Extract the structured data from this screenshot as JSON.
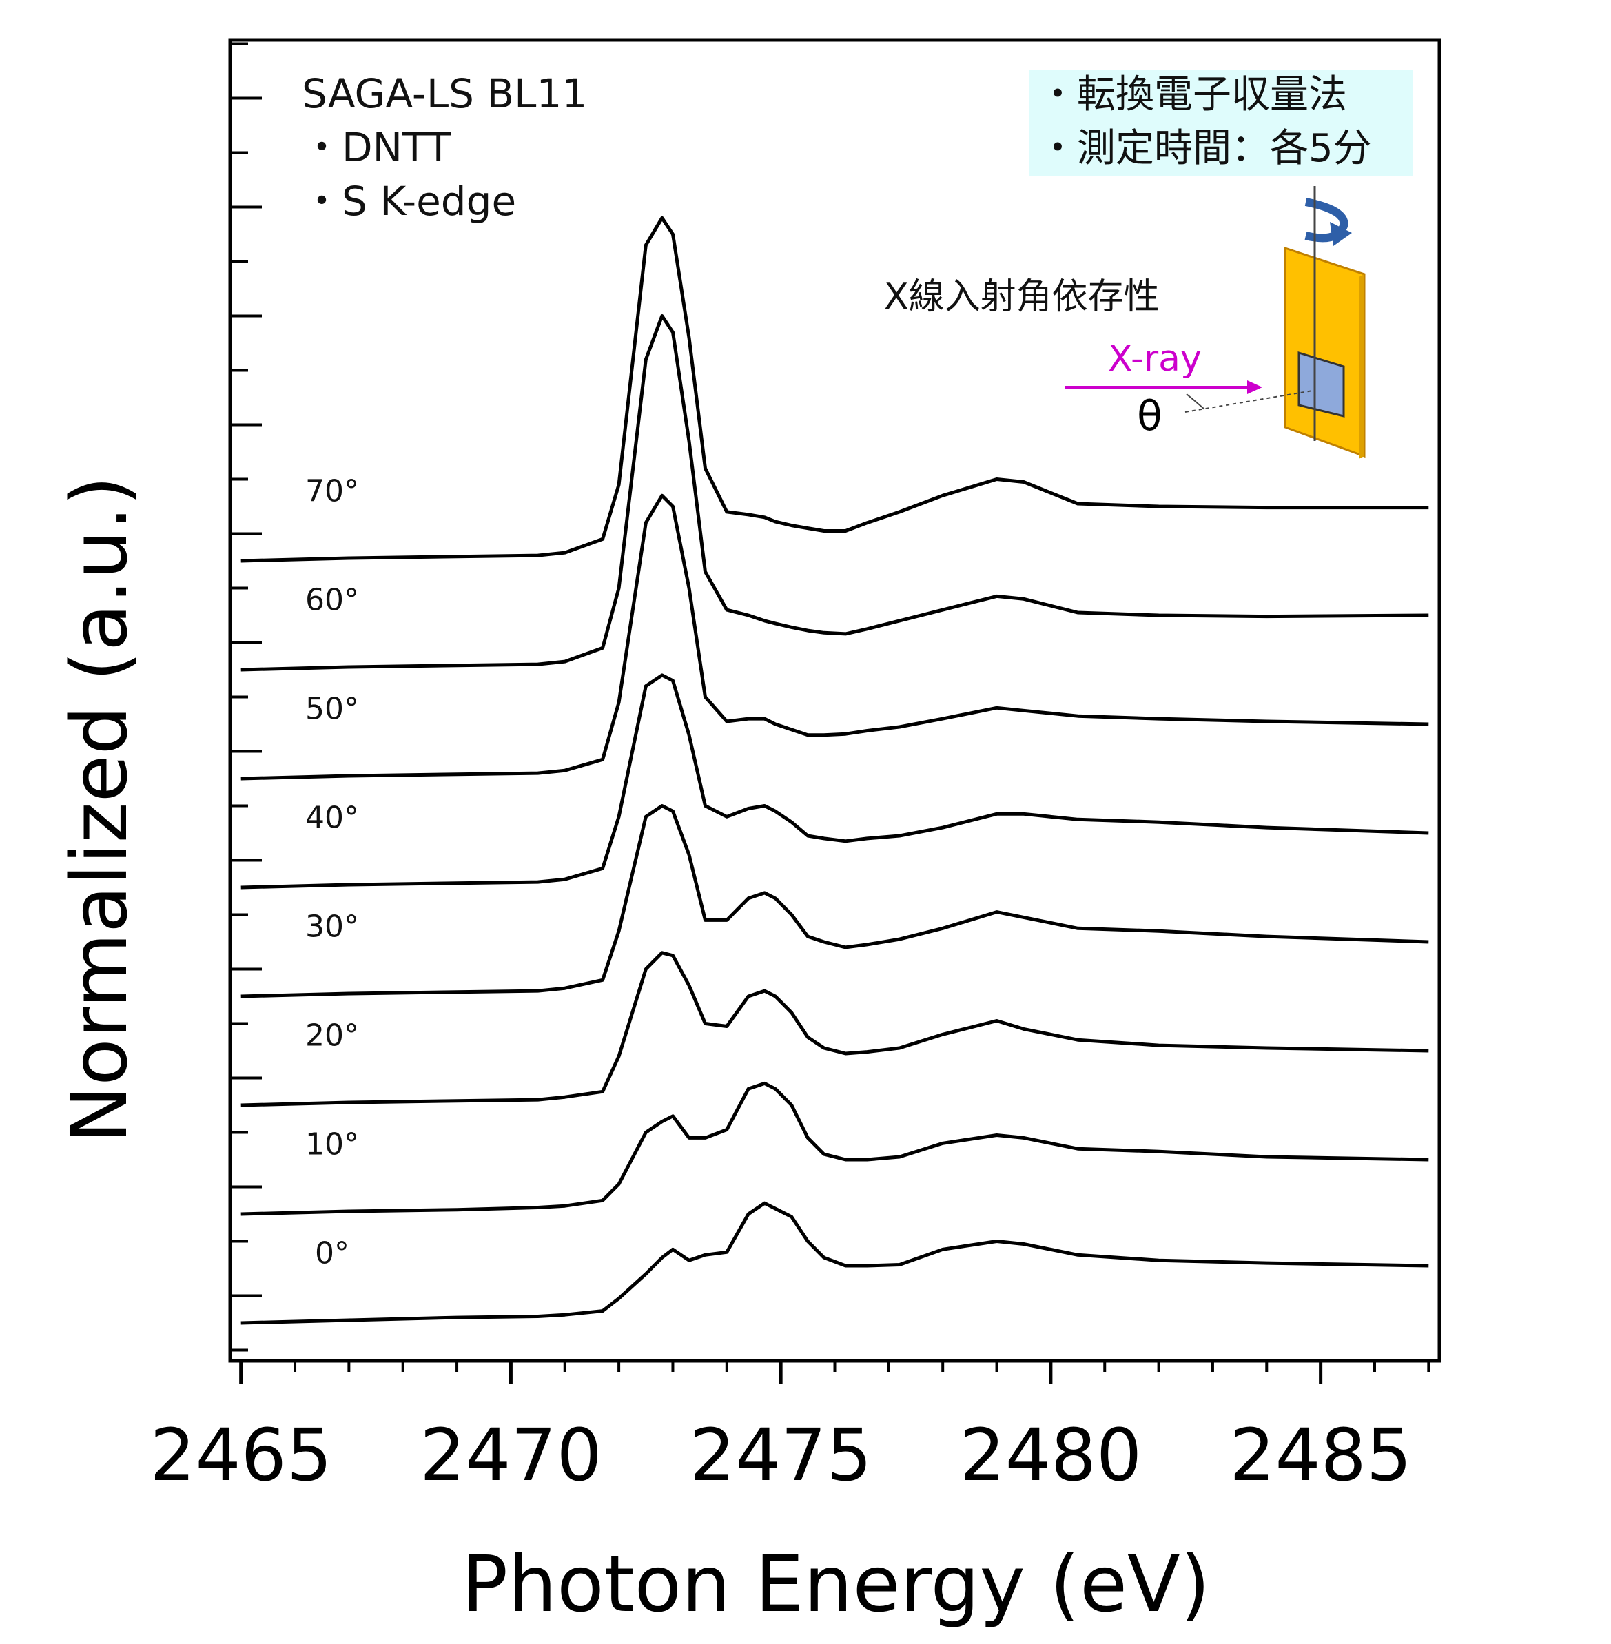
{
  "chart_data": {
    "type": "line",
    "title": "",
    "xlabel": "Photon Energy (eV)",
    "ylabel": "Normalized (a.u.)",
    "xlim": [
      2464.8,
      2487.2
    ],
    "xticks": [
      2465,
      2470,
      2475,
      2480,
      2485
    ],
    "ylim": [
      -0.6,
      24
    ],
    "y_axis_tick_labels": "none",
    "grid": false,
    "legend": "none",
    "offset_between_spectra": 2.0,
    "annotations": {
      "beamline": "SAGA-LS BL11",
      "sample": "・DNTT",
      "edge": "・S K-edge",
      "method": "・転換電子収量法",
      "time": "・測定時間：各5分",
      "dependence": "X線入射角依存性",
      "xray": "X-ray",
      "theta": "θ"
    },
    "colors": {
      "line": "#000000",
      "box_bg": "#DFFCFC",
      "substrate": "#FFC000",
      "sample": "#8EA9DB",
      "rotation_arrow": "#2E5FA8",
      "xray": "#CC00CC"
    },
    "series": [
      {
        "name": "0°",
        "offset": 0,
        "x": [
          2465.0,
          2467.0,
          2469.0,
          2470.5,
          2471.0,
          2471.7,
          2472.0,
          2472.5,
          2472.8,
          2473.0,
          2473.3,
          2473.6,
          2474.0,
          2474.4,
          2474.7,
          2474.9,
          2475.2,
          2475.5,
          2475.8,
          2476.2,
          2476.6,
          2477.2,
          2478.0,
          2479.0,
          2479.5,
          2480.5,
          2482.0,
          2484.0,
          2487.0
        ],
        "y": [
          0.0,
          0.05,
          0.1,
          0.12,
          0.15,
          0.22,
          0.45,
          0.9,
          1.2,
          1.35,
          1.15,
          1.25,
          1.3,
          2.0,
          2.2,
          2.1,
          1.95,
          1.5,
          1.2,
          1.05,
          1.05,
          1.07,
          1.35,
          1.5,
          1.45,
          1.25,
          1.15,
          1.1,
          1.05
        ]
      },
      {
        "name": "10°",
        "offset": 2,
        "x": [
          2465.0,
          2467.0,
          2469.0,
          2470.5,
          2471.0,
          2471.7,
          2472.0,
          2472.5,
          2472.8,
          2473.0,
          2473.3,
          2473.6,
          2474.0,
          2474.4,
          2474.7,
          2474.9,
          2475.2,
          2475.5,
          2475.8,
          2476.2,
          2476.6,
          2477.2,
          2478.0,
          2479.0,
          2479.5,
          2480.5,
          2482.0,
          2484.0,
          2487.0
        ],
        "y": [
          0.0,
          0.05,
          0.08,
          0.12,
          0.15,
          0.25,
          0.55,
          1.5,
          1.7,
          1.8,
          1.4,
          1.4,
          1.55,
          2.3,
          2.4,
          2.3,
          2.0,
          1.4,
          1.1,
          1.0,
          1.0,
          1.05,
          1.3,
          1.45,
          1.4,
          1.2,
          1.15,
          1.05,
          1.0
        ]
      },
      {
        "name": "20°",
        "offset": 4,
        "x": [
          2465.0,
          2467.0,
          2469.0,
          2470.5,
          2471.0,
          2471.7,
          2472.0,
          2472.5,
          2472.8,
          2473.0,
          2473.3,
          2473.6,
          2474.0,
          2474.4,
          2474.7,
          2474.9,
          2475.2,
          2475.5,
          2475.8,
          2476.2,
          2476.6,
          2477.2,
          2478.0,
          2479.0,
          2479.5,
          2480.5,
          2482.0,
          2484.0,
          2487.0
        ],
        "y": [
          0.0,
          0.05,
          0.08,
          0.1,
          0.15,
          0.25,
          0.9,
          2.5,
          2.8,
          2.75,
          2.2,
          1.5,
          1.45,
          2.0,
          2.1,
          2.0,
          1.7,
          1.25,
          1.05,
          0.95,
          0.98,
          1.05,
          1.3,
          1.55,
          1.4,
          1.2,
          1.1,
          1.05,
          1.0
        ]
      },
      {
        "name": "30°",
        "offset": 6,
        "x": [
          2465.0,
          2467.0,
          2469.0,
          2470.5,
          2471.0,
          2471.7,
          2472.0,
          2472.5,
          2472.8,
          2473.0,
          2473.3,
          2473.6,
          2474.0,
          2474.4,
          2474.7,
          2474.9,
          2475.2,
          2475.5,
          2475.8,
          2476.2,
          2476.6,
          2477.2,
          2478.0,
          2479.0,
          2479.5,
          2480.5,
          2482.0,
          2484.0,
          2487.0
        ],
        "y": [
          0.0,
          0.05,
          0.08,
          0.1,
          0.15,
          0.3,
          1.2,
          3.3,
          3.5,
          3.4,
          2.6,
          1.4,
          1.4,
          1.8,
          1.9,
          1.8,
          1.5,
          1.1,
          1.0,
          0.9,
          0.95,
          1.05,
          1.25,
          1.55,
          1.45,
          1.25,
          1.2,
          1.1,
          1.0
        ]
      },
      {
        "name": "40°",
        "offset": 8,
        "x": [
          2465.0,
          2467.0,
          2469.0,
          2470.5,
          2471.0,
          2471.7,
          2472.0,
          2472.5,
          2472.8,
          2473.0,
          2473.3,
          2473.6,
          2474.0,
          2474.4,
          2474.7,
          2474.9,
          2475.2,
          2475.5,
          2475.8,
          2476.2,
          2476.6,
          2477.2,
          2478.0,
          2479.0,
          2479.5,
          2480.5,
          2482.0,
          2484.0,
          2487.0
        ],
        "y": [
          0.0,
          0.05,
          0.08,
          0.1,
          0.15,
          0.35,
          1.3,
          3.7,
          3.9,
          3.8,
          2.8,
          1.5,
          1.3,
          1.45,
          1.5,
          1.4,
          1.2,
          0.95,
          0.9,
          0.85,
          0.9,
          0.95,
          1.1,
          1.35,
          1.35,
          1.25,
          1.2,
          1.1,
          1.0
        ]
      },
      {
        "name": "50°",
        "offset": 10,
        "x": [
          2465.0,
          2467.0,
          2469.0,
          2470.5,
          2471.0,
          2471.7,
          2472.0,
          2472.5,
          2472.8,
          2473.0,
          2473.3,
          2473.6,
          2474.0,
          2474.4,
          2474.7,
          2474.9,
          2475.2,
          2475.5,
          2475.8,
          2476.2,
          2476.6,
          2477.2,
          2478.0,
          2479.0,
          2479.5,
          2480.5,
          2482.0,
          2484.0,
          2487.0
        ],
        "y": [
          0.0,
          0.05,
          0.08,
          0.1,
          0.15,
          0.35,
          1.4,
          4.7,
          5.2,
          5.0,
          3.5,
          1.5,
          1.05,
          1.1,
          1.1,
          1.0,
          0.9,
          0.8,
          0.8,
          0.82,
          0.88,
          0.95,
          1.1,
          1.3,
          1.25,
          1.15,
          1.1,
          1.05,
          1.0
        ]
      },
      {
        "name": "60°",
        "offset": 12,
        "x": [
          2465.0,
          2467.0,
          2469.0,
          2470.5,
          2471.0,
          2471.7,
          2472.0,
          2472.5,
          2472.8,
          2473.0,
          2473.3,
          2473.6,
          2474.0,
          2474.4,
          2474.7,
          2474.9,
          2475.2,
          2475.5,
          2475.8,
          2476.2,
          2476.6,
          2477.2,
          2478.0,
          2479.0,
          2479.5,
          2480.5,
          2482.0,
          2484.0,
          2487.0
        ],
        "y": [
          0.0,
          0.05,
          0.08,
          0.1,
          0.15,
          0.4,
          1.5,
          5.7,
          6.5,
          6.2,
          4.2,
          1.8,
          1.1,
          1.0,
          0.9,
          0.85,
          0.78,
          0.72,
          0.68,
          0.66,
          0.75,
          0.9,
          1.1,
          1.35,
          1.3,
          1.05,
          1.0,
          0.98,
          1.0
        ]
      },
      {
        "name": "70°",
        "offset": 14,
        "x": [
          2465.0,
          2467.0,
          2469.0,
          2470.5,
          2471.0,
          2471.7,
          2472.0,
          2472.5,
          2472.8,
          2473.0,
          2473.3,
          2473.6,
          2474.0,
          2474.4,
          2474.7,
          2474.9,
          2475.2,
          2475.5,
          2475.8,
          2476.2,
          2476.6,
          2477.2,
          2478.0,
          2479.0,
          2479.5,
          2480.5,
          2482.0,
          2484.0,
          2487.0
        ],
        "y": [
          0.0,
          0.05,
          0.08,
          0.1,
          0.15,
          0.4,
          1.4,
          5.8,
          6.3,
          6.0,
          4.1,
          1.7,
          0.9,
          0.85,
          0.8,
          0.72,
          0.65,
          0.6,
          0.55,
          0.55,
          0.7,
          0.9,
          1.2,
          1.5,
          1.45,
          1.05,
          1.0,
          0.98,
          0.98
        ]
      }
    ]
  }
}
